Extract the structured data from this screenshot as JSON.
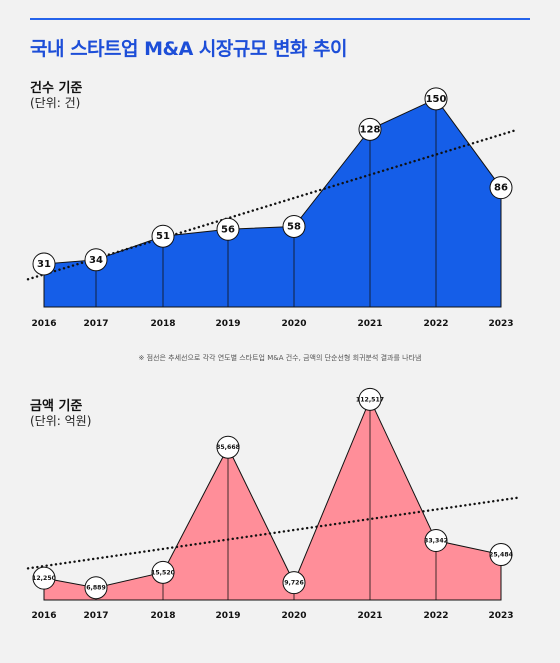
{
  "title": "국내 스타트업 M&A 시장규모 변화 추이",
  "note": "※ 점선은 추세선으로 각각 연도별 스타트업 M&A 건수, 금액의 단순선형 회귀분석 결과를 나타냄",
  "colors": {
    "accent": "#1d4ed8",
    "count_fill": "#155ee8",
    "amount_fill": "#ff8e99"
  },
  "chart_data": [
    {
      "type": "area",
      "title": "건수 기준",
      "unit": "(단위: 건)",
      "categories": [
        "2016",
        "2017",
        "2018",
        "2019",
        "2020",
        "2021",
        "2022",
        "2023"
      ],
      "values": [
        31,
        34,
        51,
        56,
        58,
        128,
        150,
        86
      ],
      "labels": [
        "31",
        "34",
        "51",
        "56",
        "58",
        "128",
        "150",
        "86"
      ],
      "ylim": [
        0,
        165
      ],
      "trendline": "dotted",
      "grid": false
    },
    {
      "type": "area",
      "title": "금액 기준",
      "unit": "(단위: 억원)",
      "categories": [
        "2016",
        "2017",
        "2018",
        "2019",
        "2020",
        "2021",
        "2022",
        "2023"
      ],
      "values": [
        12250,
        6889,
        15520,
        85668,
        9726,
        112517,
        33342,
        25484
      ],
      "labels": [
        "12,250",
        "6,889",
        "15,520",
        "85,668",
        "9,726",
        "112,517",
        "33,342",
        "25,484"
      ],
      "ylim": [
        0,
        120000
      ],
      "trendline": "dotted",
      "grid": false
    }
  ]
}
